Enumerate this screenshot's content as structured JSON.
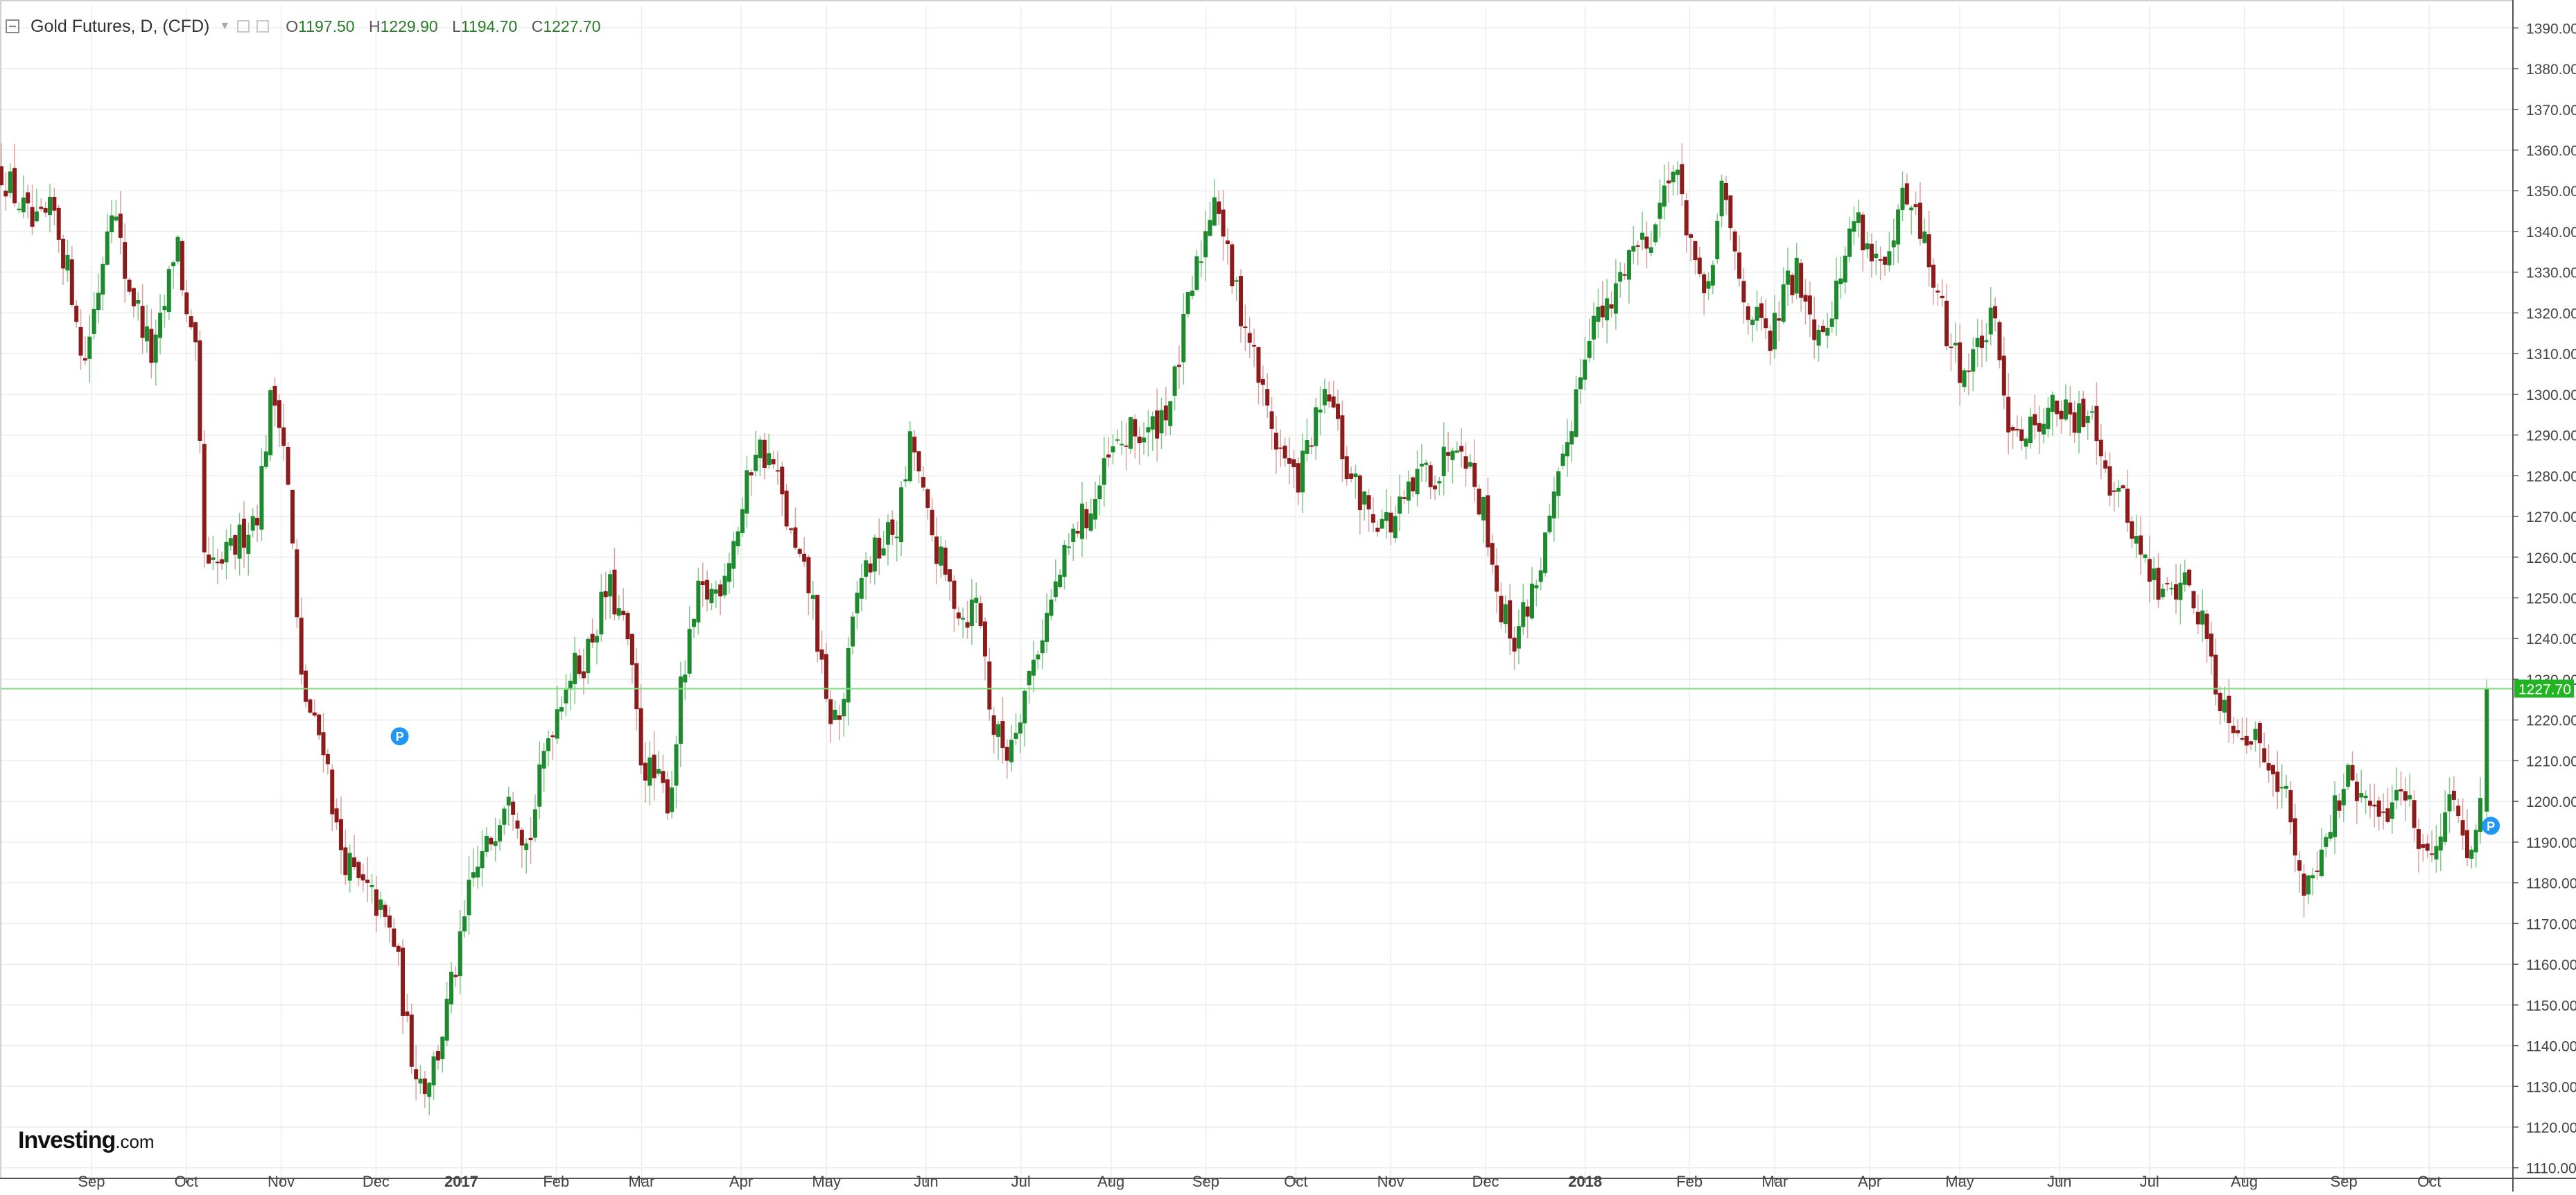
{
  "header": {
    "title": "Gold Futures, D, (CFD)",
    "ohlc": [
      {
        "label": "O",
        "value": "1197.50"
      },
      {
        "label": "H",
        "value": "1229.90"
      },
      {
        "label": "L",
        "value": "1194.70"
      },
      {
        "label": "C",
        "value": "1227.70"
      }
    ]
  },
  "brand": {
    "name": "Investing",
    "suffix": ".com"
  },
  "colors": {
    "up": "#1e8a2e",
    "down": "#8c1b1b",
    "grid": "#ececec",
    "last_price_line": "#7fdc7f",
    "last_price_tag": "#22b422",
    "marker": "#2196f3"
  },
  "chart_data": {
    "type": "candlestick",
    "title": "Gold Futures, D, (CFD)",
    "ylim": [
      1110,
      1395
    ],
    "y_ticks": [
      "1390.00",
      "1380.00",
      "1370.00",
      "1360.00",
      "1350.00",
      "1340.00",
      "1330.00",
      "1320.00",
      "1310.00",
      "1300.00",
      "1290.00",
      "1280.00",
      "1270.00",
      "1260.00",
      "1250.00",
      "1240.00",
      "1230.00",
      "1220.00",
      "1210.00",
      "1200.00",
      "1190.00",
      "1180.00",
      "1170.00",
      "1160.00",
      "1150.00",
      "1140.00",
      "1130.00",
      "1120.00",
      "1110.00"
    ],
    "x_ticks": [
      {
        "label": "Sep",
        "t": 0.1
      },
      {
        "label": "Oct",
        "t": 1.1
      },
      {
        "label": "Nov",
        "t": 2.1
      },
      {
        "label": "Dec",
        "t": 3.1
      },
      {
        "label": "2017",
        "t": 4.0,
        "bold": true
      },
      {
        "label": "Feb",
        "t": 5.0
      },
      {
        "label": "Mar",
        "t": 5.9
      },
      {
        "label": "Apr",
        "t": 6.95
      },
      {
        "label": "May",
        "t": 7.85
      },
      {
        "label": "Jun",
        "t": 8.9
      },
      {
        "label": "Jul",
        "t": 9.9
      },
      {
        "label": "Aug",
        "t": 10.85
      },
      {
        "label": "Sep",
        "t": 11.85
      },
      {
        "label": "Oct",
        "t": 12.8
      },
      {
        "label": "Nov",
        "t": 13.8
      },
      {
        "label": "Dec",
        "t": 14.8
      },
      {
        "label": "2018",
        "t": 15.85,
        "bold": true
      },
      {
        "label": "Feb",
        "t": 16.95
      },
      {
        "label": "Mar",
        "t": 17.85
      },
      {
        "label": "Apr",
        "t": 18.85
      },
      {
        "label": "May",
        "t": 19.8
      },
      {
        "label": "Jun",
        "t": 20.85
      },
      {
        "label": "Jul",
        "t": 21.8
      },
      {
        "label": "Aug",
        "t": 22.8
      },
      {
        "label": "Sep",
        "t": 23.85
      },
      {
        "label": "Oct",
        "t": 24.75
      }
    ],
    "t_range": [
      -0.85,
      25.45
    ],
    "path": [
      [
        -0.85,
        1355
      ],
      [
        -0.5,
        1340
      ],
      [
        -0.3,
        1345
      ],
      [
        -0.05,
        1320
      ],
      [
        0,
        1305
      ],
      [
        0.2,
        1330
      ],
      [
        0.3,
        1350
      ],
      [
        0.45,
        1330
      ],
      [
        0.6,
        1320
      ],
      [
        0.75,
        1308
      ],
      [
        0.9,
        1325
      ],
      [
        1.0,
        1340
      ],
      [
        1.1,
        1318
      ],
      [
        1.2,
        1308
      ],
      [
        1.3,
        1255
      ],
      [
        1.45,
        1258
      ],
      [
        1.6,
        1262
      ],
      [
        1.75,
        1268
      ],
      [
        1.85,
        1272
      ],
      [
        2.0,
        1300
      ],
      [
        2.1,
        1295
      ],
      [
        2.2,
        1270
      ],
      [
        2.3,
        1230
      ],
      [
        2.45,
        1218
      ],
      [
        2.55,
        1215
      ],
      [
        2.7,
        1190
      ],
      [
        2.9,
        1180
      ],
      [
        3.1,
        1175
      ],
      [
        3.3,
        1165
      ],
      [
        3.45,
        1140
      ],
      [
        3.6,
        1130
      ],
      [
        3.75,
        1138
      ],
      [
        3.9,
        1155
      ],
      [
        4.0,
        1165
      ],
      [
        4.1,
        1180
      ],
      [
        4.3,
        1190
      ],
      [
        4.5,
        1205
      ],
      [
        4.7,
        1188
      ],
      [
        4.9,
        1215
      ],
      [
        5.1,
        1230
      ],
      [
        5.3,
        1235
      ],
      [
        5.55,
        1253
      ],
      [
        5.75,
        1240
      ],
      [
        5.9,
        1210
      ],
      [
        6.05,
        1205
      ],
      [
        6.2,
        1200
      ],
      [
        6.3,
        1225
      ],
      [
        6.5,
        1250
      ],
      [
        6.7,
        1252
      ],
      [
        6.95,
        1270
      ],
      [
        7.1,
        1288
      ],
      [
        7.3,
        1282
      ],
      [
        7.5,
        1262
      ],
      [
        7.7,
        1250
      ],
      [
        7.85,
        1222
      ],
      [
        8.0,
        1220
      ],
      [
        8.2,
        1255
      ],
      [
        8.4,
        1262
      ],
      [
        8.6,
        1268
      ],
      [
        8.75,
        1290
      ],
      [
        8.9,
        1270
      ],
      [
        9.1,
        1255
      ],
      [
        9.3,
        1245
      ],
      [
        9.45,
        1250
      ],
      [
        9.6,
        1218
      ],
      [
        9.75,
        1212
      ],
      [
        9.95,
        1228
      ],
      [
        10.1,
        1240
      ],
      [
        10.3,
        1255
      ],
      [
        10.5,
        1268
      ],
      [
        10.65,
        1272
      ],
      [
        10.85,
        1285
      ],
      [
        11.05,
        1290
      ],
      [
        11.25,
        1290
      ],
      [
        11.5,
        1300
      ],
      [
        11.65,
        1320
      ],
      [
        11.85,
        1340
      ],
      [
        11.95,
        1352
      ],
      [
        12.1,
        1330
      ],
      [
        12.3,
        1315
      ],
      [
        12.45,
        1300
      ],
      [
        12.6,
        1288
      ],
      [
        12.8,
        1278
      ],
      [
        13.0,
        1292
      ],
      [
        13.15,
        1300
      ],
      [
        13.35,
        1280
      ],
      [
        13.55,
        1272
      ],
      [
        13.8,
        1268
      ],
      [
        14.0,
        1275
      ],
      [
        14.15,
        1282
      ],
      [
        14.3,
        1280
      ],
      [
        14.45,
        1290
      ],
      [
        14.55,
        1290
      ],
      [
        14.65,
        1280
      ],
      [
        14.8,
        1270
      ],
      [
        14.95,
        1248
      ],
      [
        15.1,
        1240
      ],
      [
        15.3,
        1252
      ],
      [
        15.45,
        1265
      ],
      [
        15.6,
        1280
      ],
      [
        15.75,
        1300
      ],
      [
        15.9,
        1318
      ],
      [
        16.1,
        1320
      ],
      [
        16.3,
        1335
      ],
      [
        16.45,
        1338
      ],
      [
        16.6,
        1342
      ],
      [
        16.75,
        1358
      ],
      [
        16.95,
        1340
      ],
      [
        17.1,
        1320
      ],
      [
        17.3,
        1350
      ],
      [
        17.5,
        1325
      ],
      [
        17.65,
        1318
      ],
      [
        17.8,
        1312
      ],
      [
        17.95,
        1325
      ],
      [
        18.1,
        1330
      ],
      [
        18.3,
        1315
      ],
      [
        18.5,
        1325
      ],
      [
        18.7,
        1345
      ],
      [
        18.85,
        1335
      ],
      [
        19.05,
        1330
      ],
      [
        19.2,
        1348
      ],
      [
        19.4,
        1340
      ],
      [
        19.55,
        1325
      ],
      [
        19.7,
        1312
      ],
      [
        19.85,
        1305
      ],
      [
        20.0,
        1312
      ],
      [
        20.15,
        1318
      ],
      [
        20.3,
        1295
      ],
      [
        20.5,
        1290
      ],
      [
        20.65,
        1295
      ],
      [
        20.85,
        1297
      ],
      [
        21.0,
        1292
      ],
      [
        21.2,
        1298
      ],
      [
        21.35,
        1280
      ],
      [
        21.55,
        1272
      ],
      [
        21.75,
        1258
      ],
      [
        21.95,
        1250
      ],
      [
        22.15,
        1255
      ],
      [
        22.35,
        1245
      ],
      [
        22.55,
        1225
      ],
      [
        22.7,
        1220
      ],
      [
        22.9,
        1215
      ],
      [
        23.1,
        1210
      ],
      [
        23.25,
        1200
      ],
      [
        23.4,
        1178
      ],
      [
        23.55,
        1185
      ],
      [
        23.7,
        1195
      ],
      [
        23.9,
        1205
      ],
      [
        24.05,
        1200
      ],
      [
        24.25,
        1195
      ],
      [
        24.45,
        1205
      ],
      [
        24.6,
        1195
      ],
      [
        24.75,
        1185
      ],
      [
        24.9,
        1198
      ],
      [
        25.05,
        1200
      ],
      [
        25.15,
        1190
      ],
      [
        25.25,
        1195
      ],
      [
        25.32,
        1197.5
      ]
    ],
    "last_candle": {
      "open": 1197.5,
      "high": 1229.9,
      "low": 1194.7,
      "close": 1227.7
    },
    "last_price": 1227.7,
    "last_price_label": "1227.70",
    "markers": [
      {
        "label": "P",
        "t": 3.35,
        "value": 1216
      },
      {
        "label": "P",
        "t": 25.4,
        "value": 1194
      }
    ],
    "grid": true,
    "y_axis": "right"
  }
}
